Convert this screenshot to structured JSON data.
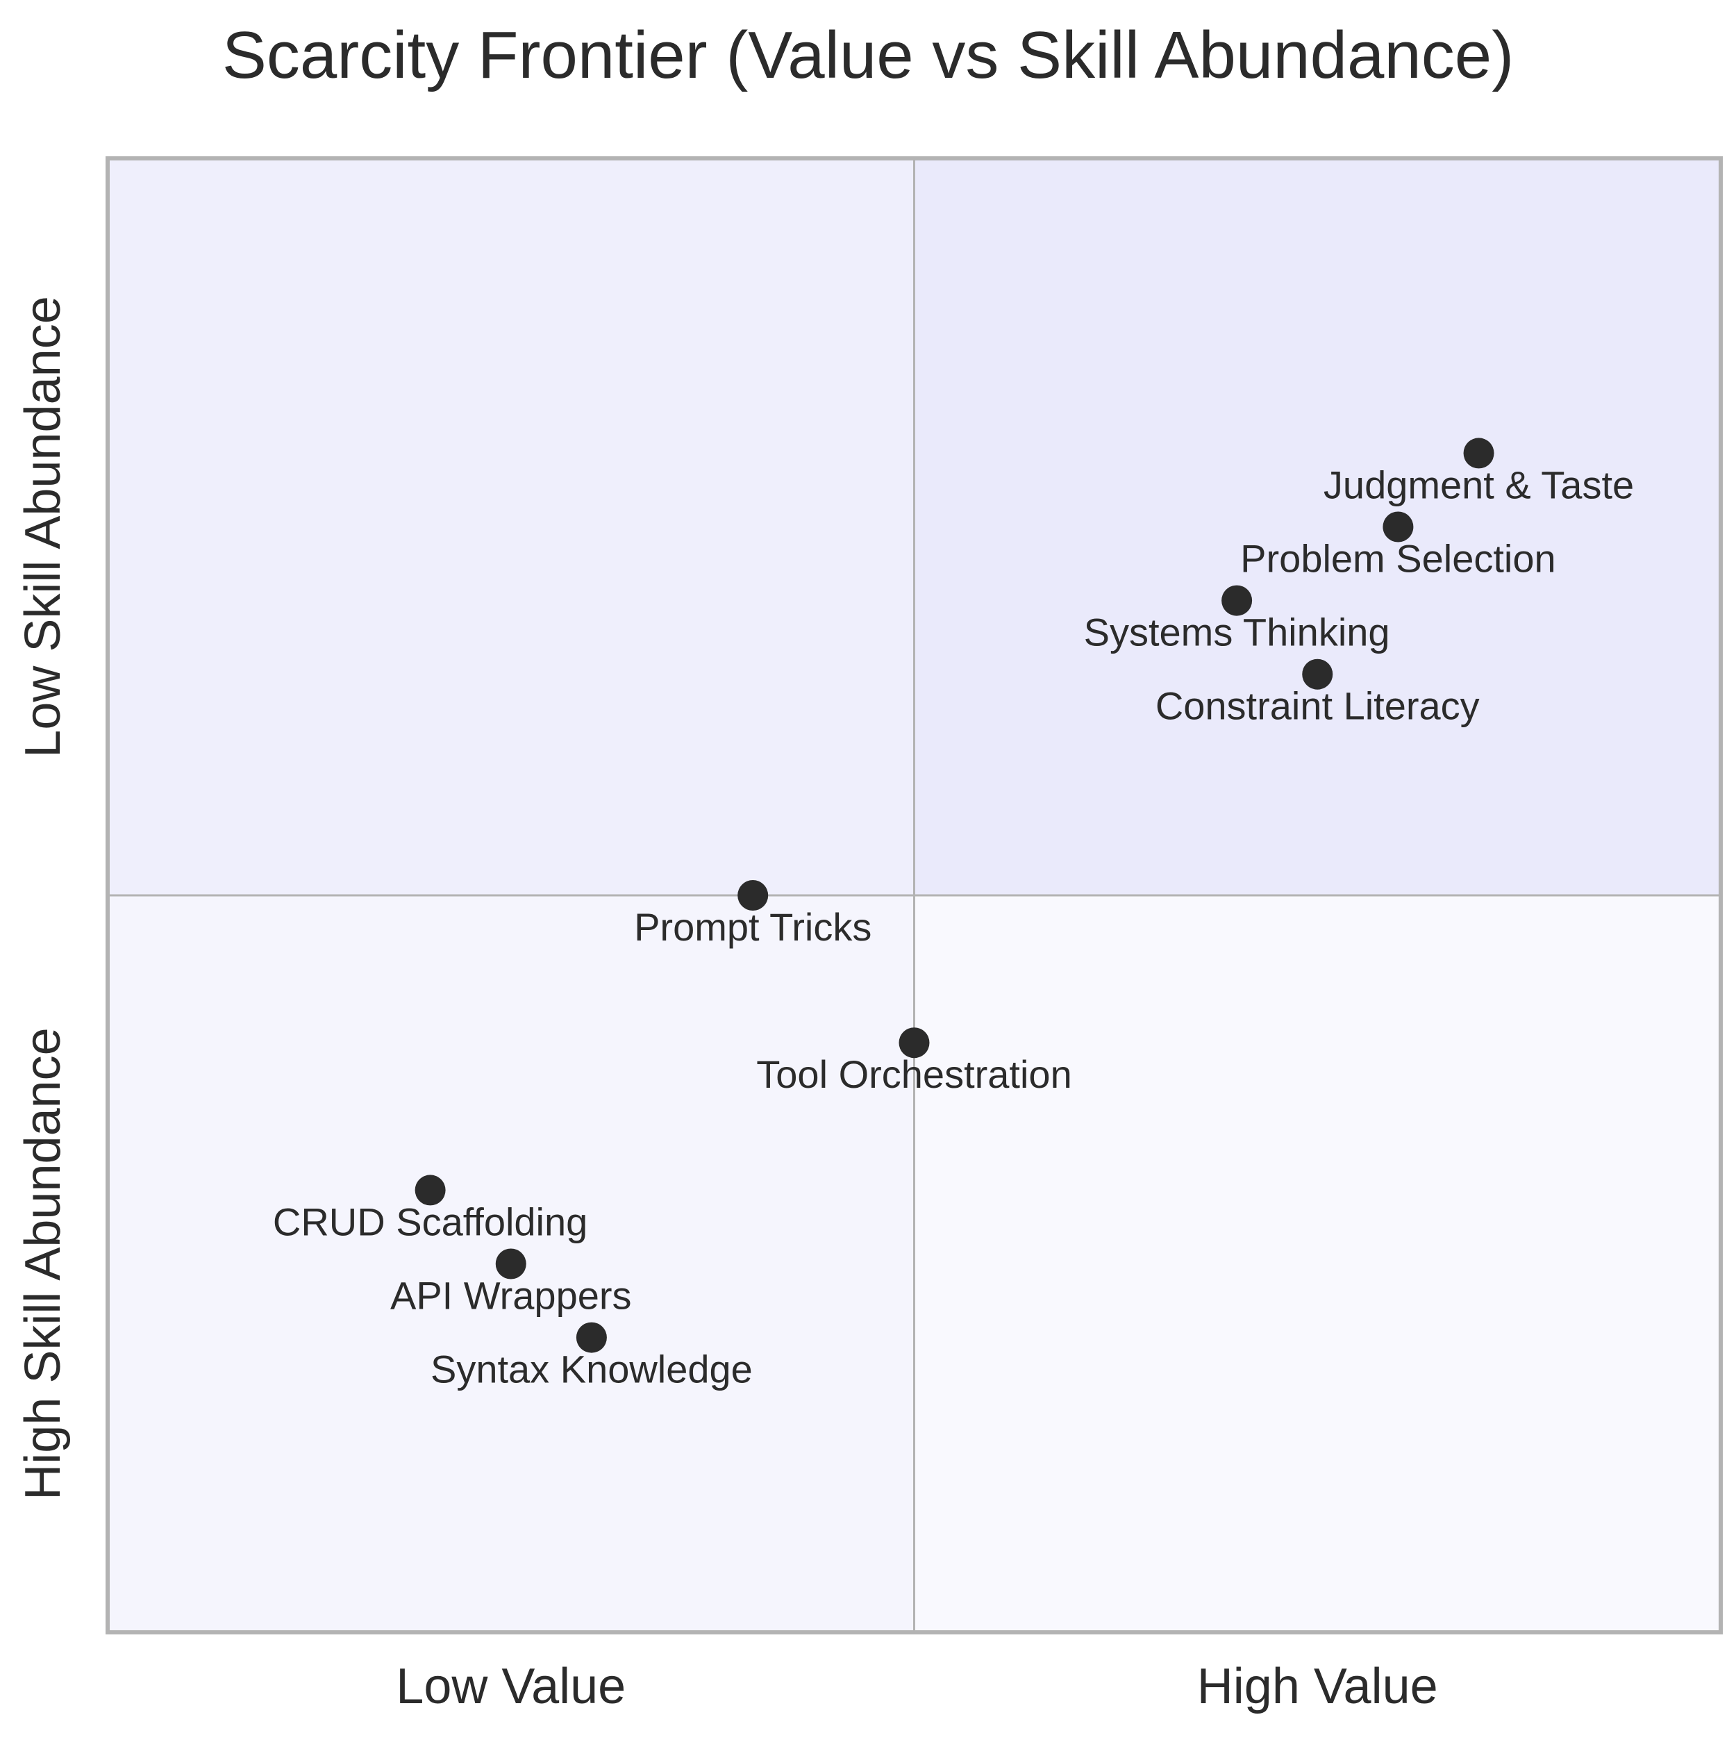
{
  "chart_data": {
    "type": "scatter",
    "title": "Scarcity Frontier (Value vs Skill Abundance)",
    "xlim": [
      0,
      1
    ],
    "ylim": [
      0,
      1
    ],
    "x_tick_labels": [
      {
        "value": 0.25,
        "label": "Low Value"
      },
      {
        "value": 0.75,
        "label": "High Value"
      }
    ],
    "y_tick_labels": [
      {
        "value": 0.75,
        "label": "Low Skill Abundance"
      },
      {
        "value": 0.25,
        "label": "High Skill Abundance"
      }
    ],
    "quadrant_split": {
      "x": 0.5,
      "y": 0.5
    },
    "quadrant_colors": {
      "top_left": "#efeffc",
      "top_right": "#eaeafb",
      "bottom_left": "#f5f5fd",
      "bottom_right": "#f9f9fe"
    },
    "grid": false,
    "frame_color": "#b3b3b3",
    "divider_color": "#b3b3b3",
    "point_color": "#2b2b2b",
    "points": [
      {
        "label": "Judgment & Taste",
        "x": 0.85,
        "y": 0.8
      },
      {
        "label": "Problem Selection",
        "x": 0.8,
        "y": 0.75
      },
      {
        "label": "Systems Thinking",
        "x": 0.7,
        "y": 0.7
      },
      {
        "label": "Constraint Literacy",
        "x": 0.75,
        "y": 0.65
      },
      {
        "label": "Prompt Tricks",
        "x": 0.4,
        "y": 0.5
      },
      {
        "label": "Tool Orchestration",
        "x": 0.5,
        "y": 0.4
      },
      {
        "label": "CRUD Scaffolding",
        "x": 0.2,
        "y": 0.3
      },
      {
        "label": "API Wrappers",
        "x": 0.25,
        "y": 0.25
      },
      {
        "label": "Syntax Knowledge",
        "x": 0.3,
        "y": 0.2
      }
    ]
  }
}
